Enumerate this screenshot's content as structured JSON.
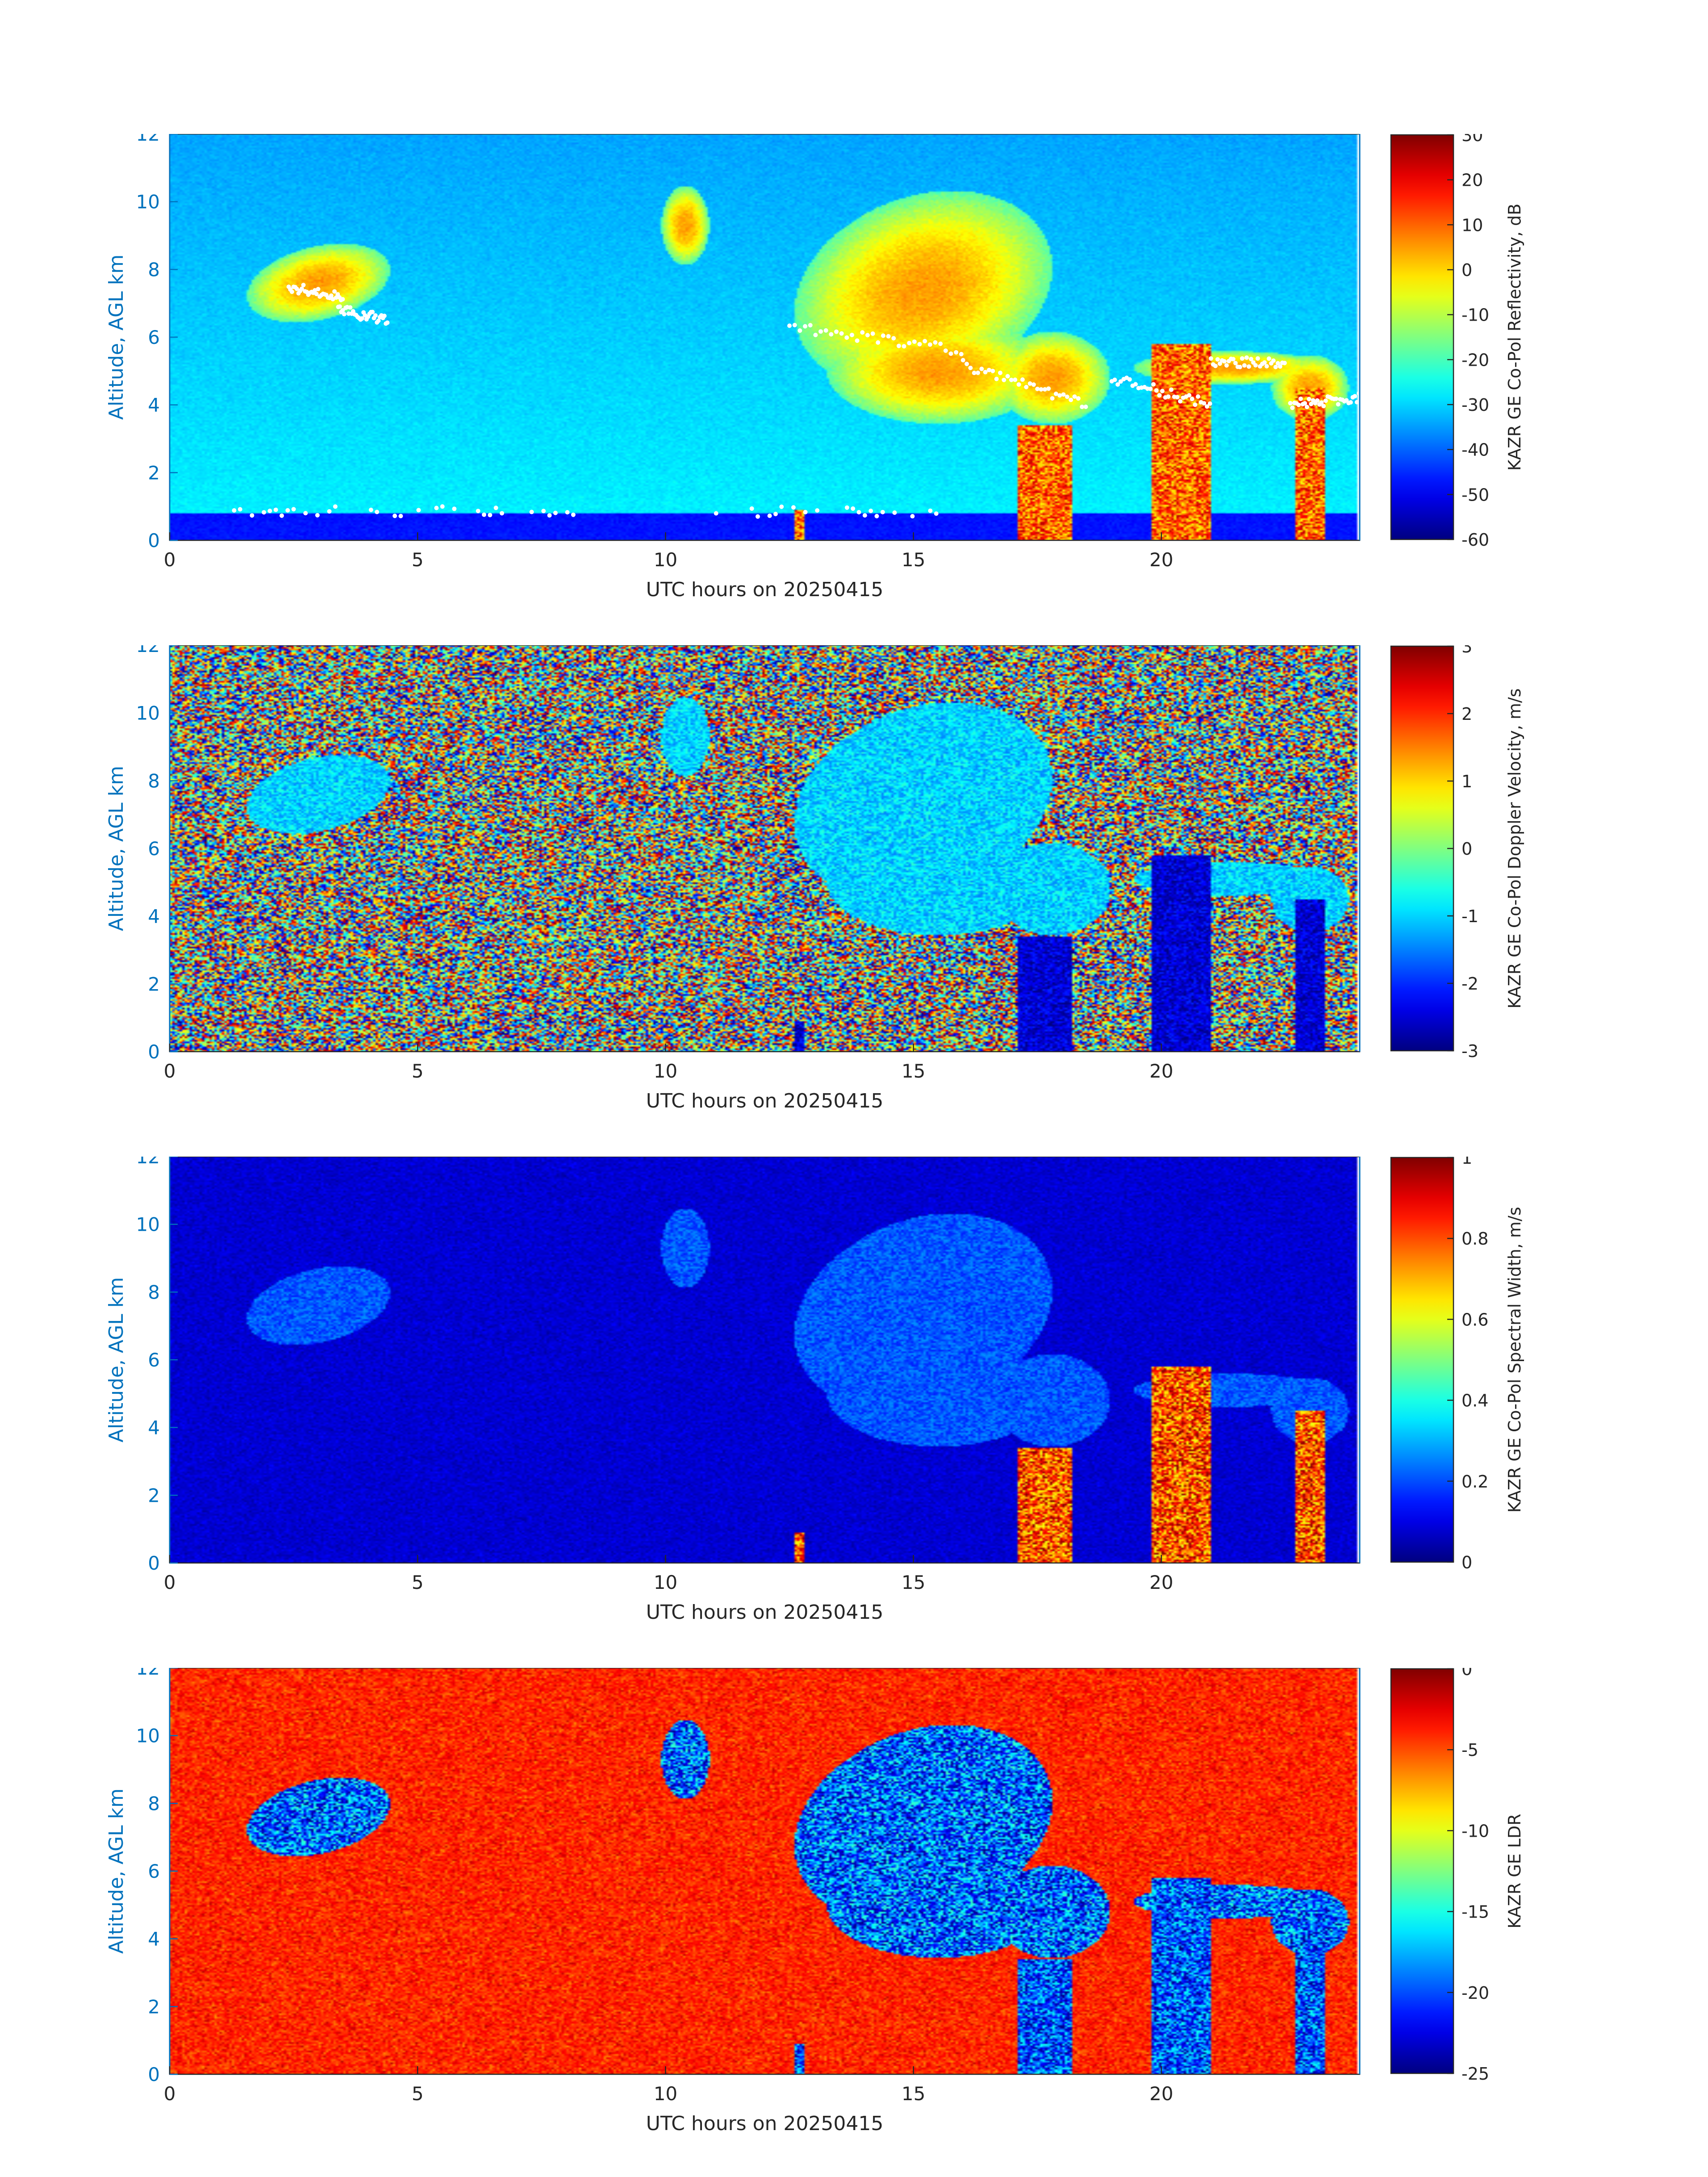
{
  "figure": {
    "date": "20250415"
  },
  "chart_data": [
    {
      "type": "heatmap",
      "field": "reflectivity",
      "xlabel": "UTC hours on 20250415",
      "ylabel": "Altitude, AGL km",
      "cbar_label": "KAZR GE Co-Pol Reflectivity, dB",
      "xlim": [
        0,
        24
      ],
      "ylim": [
        0,
        12
      ],
      "x_ticks": [
        0,
        5,
        10,
        15,
        20
      ],
      "y_ticks": [
        0,
        2,
        4,
        6,
        8,
        10,
        12
      ],
      "clim": [
        -60,
        30
      ],
      "cbar_ticks": [
        -60,
        -50,
        -40,
        -30,
        -20,
        -10,
        0,
        10,
        20,
        30
      ],
      "colormap": "jet",
      "background_value": -27,
      "cloud_value_range": [
        -20,
        5
      ],
      "overlays": "white markers: cloud base / boundary detections"
    },
    {
      "type": "heatmap",
      "field": "doppler_velocity",
      "xlabel": "UTC hours on 20250415",
      "ylabel": "Altitude, AGL km",
      "cbar_label": "KAZR GE Co-Pol Doppler Velocity, m/s",
      "xlim": [
        0,
        24
      ],
      "ylim": [
        0,
        12
      ],
      "x_ticks": [
        0,
        5,
        10,
        15,
        20
      ],
      "y_ticks": [
        0,
        2,
        4,
        6,
        8,
        10,
        12
      ],
      "clim": [
        -3,
        3
      ],
      "cbar_ticks": [
        -3,
        -2,
        -1,
        0,
        1,
        2,
        3
      ],
      "colormap": "jet",
      "background": "random noise across full color range",
      "cloud_value_range": [
        -1.5,
        -0.5
      ],
      "precip_value_range": [
        -3,
        -2
      ]
    },
    {
      "type": "heatmap",
      "field": "spectral_width",
      "xlabel": "UTC hours on 20250415",
      "ylabel": "Altitude, AGL km",
      "cbar_label": "KAZR GE Co-Pol Spectral Width, m/s",
      "xlim": [
        0,
        24
      ],
      "ylim": [
        0,
        12
      ],
      "x_ticks": [
        0,
        5,
        10,
        15,
        20
      ],
      "y_ticks": [
        0,
        2,
        4,
        6,
        8,
        10,
        12
      ],
      "clim": [
        0,
        1
      ],
      "cbar_ticks": [
        0,
        0.2,
        0.4,
        0.6,
        0.8,
        1
      ],
      "colormap": "jet",
      "background_value": 0.08,
      "precip_value_range": [
        0.6,
        1.0
      ]
    },
    {
      "type": "heatmap",
      "field": "ldr",
      "xlabel": "UTC hours on 20250415",
      "ylabel": "Altitude, AGL km",
      "cbar_label": "KAZR GE LDR",
      "xlim": [
        0,
        24
      ],
      "ylim": [
        0,
        12
      ],
      "x_ticks": [
        0,
        5,
        10,
        15,
        20
      ],
      "y_ticks": [
        0,
        2,
        4,
        6,
        8,
        10,
        12
      ],
      "clim": [
        -25,
        0
      ],
      "cbar_ticks": [
        -25,
        -20,
        -15,
        -10,
        -5,
        0
      ],
      "colormap": "jet",
      "background_value": -4,
      "cloud_value_range": [
        -25,
        -14
      ]
    }
  ]
}
